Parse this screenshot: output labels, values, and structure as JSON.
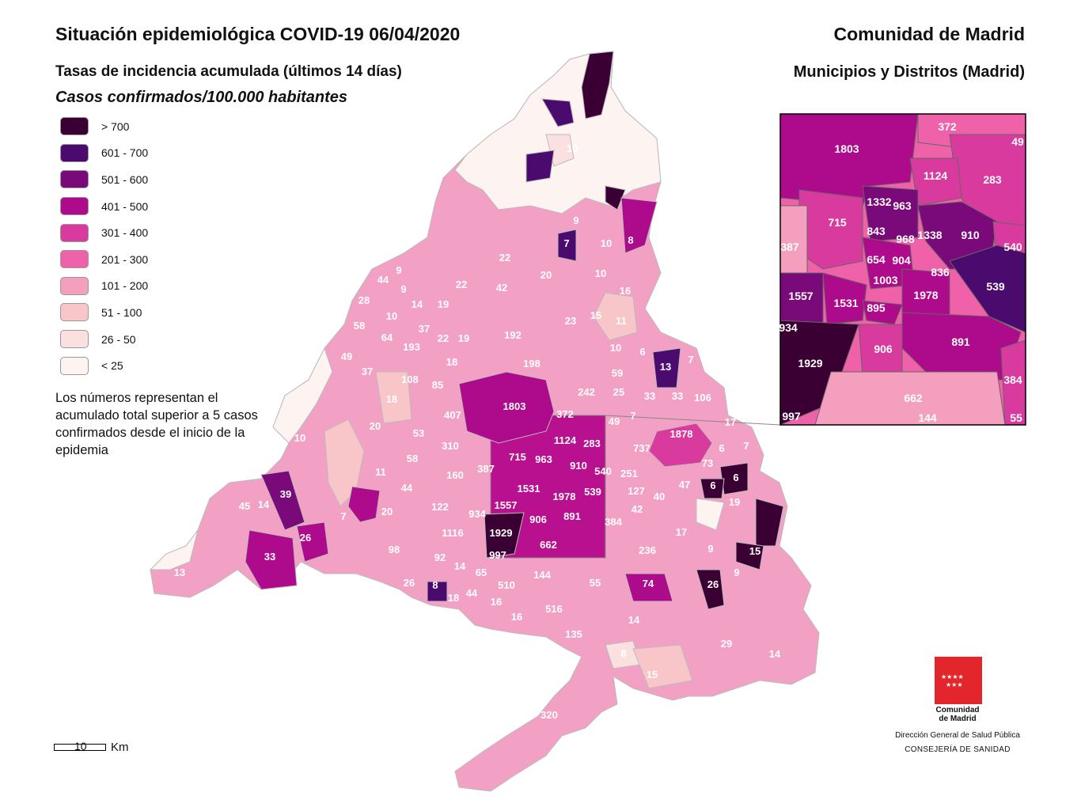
{
  "title": "Situación epidemiológica COVID-19  06/04/2020",
  "region": "Comunidad de Madrid",
  "subtitle": "Tasas de incidencia acumulada (últimos 14 días)",
  "subtitle2": "Casos confirmados/100.000 habitantes",
  "region_sub": "Municipios y Distritos (Madrid)",
  "legend": [
    {
      "label": "> 700",
      "color": "#3b0033"
    },
    {
      "label": "601 - 700",
      "color": "#4a0a6e"
    },
    {
      "label": "501 - 600",
      "color": "#7a0a7a"
    },
    {
      "label": "401 - 500",
      "color": "#ad0a8c"
    },
    {
      "label": "301 - 400",
      "color": "#d93a9e"
    },
    {
      "label": "201 - 300",
      "color": "#ef62a9"
    },
    {
      "label": "101 - 200",
      "color": "#f59fbe"
    },
    {
      "label": "51 - 100",
      "color": "#f8c5c8"
    },
    {
      "label": "26 - 50",
      "color": "#fbe0e0"
    },
    {
      "label": "< 25",
      "color": "#fdf3f1"
    }
  ],
  "note": "Los números representan el acumulado total superior a 5 casos confirmados desde el inicio de la epidemia",
  "scale": {
    "value": "10",
    "unit": "Km"
  },
  "logo": {
    "line1": "Comunidad",
    "line2": "de Madrid"
  },
  "direccion": "Dirección General de Salud Pública",
  "consejeria": "CONSEJERÍA DE SANIDAD",
  "map_labels": [
    "10",
    "7",
    "10",
    "8",
    "9",
    "22",
    "20",
    "42",
    "22",
    "44",
    "9",
    "28",
    "9",
    "14",
    "19",
    "58",
    "10",
    "37",
    "22",
    "19",
    "192",
    "10",
    "16",
    "23",
    "15",
    "11",
    "64",
    "193",
    "18",
    "198",
    "10",
    "6",
    "13",
    "7",
    "49",
    "37",
    "108",
    "85",
    "59",
    "242",
    "25",
    "33",
    "33",
    "106",
    "18",
    "407",
    "1803",
    "372",
    "49",
    "7",
    "17",
    "20",
    "53",
    "310",
    "715",
    "963",
    "1124",
    "283",
    "737",
    "1878",
    "6",
    "7",
    "10",
    "58",
    "160",
    "387",
    "910",
    "540",
    "251",
    "73",
    "6",
    "6",
    "11",
    "44",
    "1531",
    "1978",
    "539",
    "127",
    "40",
    "47",
    "45",
    "14",
    "39",
    "7",
    "20",
    "122",
    "1557",
    "934",
    "906",
    "891",
    "42",
    "384",
    "19",
    "26",
    "1116",
    "1929",
    "662",
    "236",
    "17",
    "9",
    "33",
    "98",
    "92",
    "997",
    "15",
    "13",
    "14",
    "65",
    "144",
    "510",
    "55",
    "74",
    "26",
    "9",
    "26",
    "8",
    "18",
    "44",
    "16",
    "516",
    "16",
    "14",
    "135",
    "29",
    "8",
    "14",
    "15",
    "320"
  ],
  "inset_labels": [
    "1803",
    "372",
    "49",
    "1124",
    "283",
    "715",
    "1332",
    "963",
    "843",
    "968",
    "1338",
    "910",
    "540",
    "387",
    "654",
    "904",
    "836",
    "1003",
    "539",
    "1557",
    "1531",
    "895",
    "1978",
    "934",
    "906",
    "891",
    "1929",
    "384",
    "662",
    "997",
    "144",
    "55"
  ]
}
